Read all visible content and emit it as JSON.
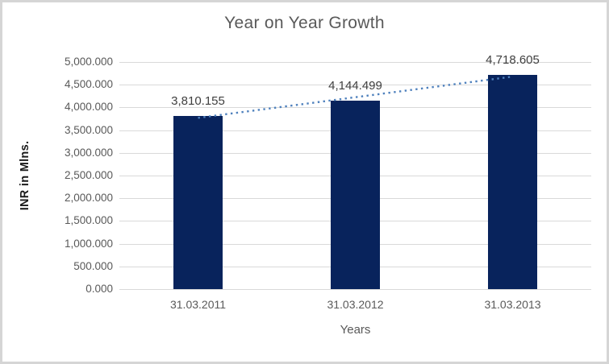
{
  "chart_data": {
    "type": "bar",
    "title": "Year on Year Growth",
    "categories": [
      "31.03.2011",
      "31.03.2012",
      "31.03.2013"
    ],
    "values": [
      3810.155,
      4144.499,
      4718.605
    ],
    "data_labels": [
      "3,810.155",
      "4,144.499",
      "4,718.605"
    ],
    "xlabel": "Years",
    "ylabel": "INR in Mlns.",
    "ylim": [
      0,
      5000
    ],
    "ytick_step": 500,
    "ytick_labels": [
      "5,000.000",
      "4,500.000",
      "4,000.000",
      "3,500.000",
      "3,000.000",
      "2,500.000",
      "2,000.000",
      "1,500.000",
      "1,000.000",
      "500.000",
      "0.000"
    ],
    "grid": true,
    "legend": "none",
    "bar_color": "#08235c",
    "trendline": {
      "type": "linear",
      "style": "dotted",
      "color": "#4f81bd"
    },
    "title_color": "#595959",
    "axis_text_color": "#595959",
    "data_label_color": "#404040",
    "gridline_color": "#d9d9d9",
    "frame_border_color": "#d5d5d5"
  }
}
